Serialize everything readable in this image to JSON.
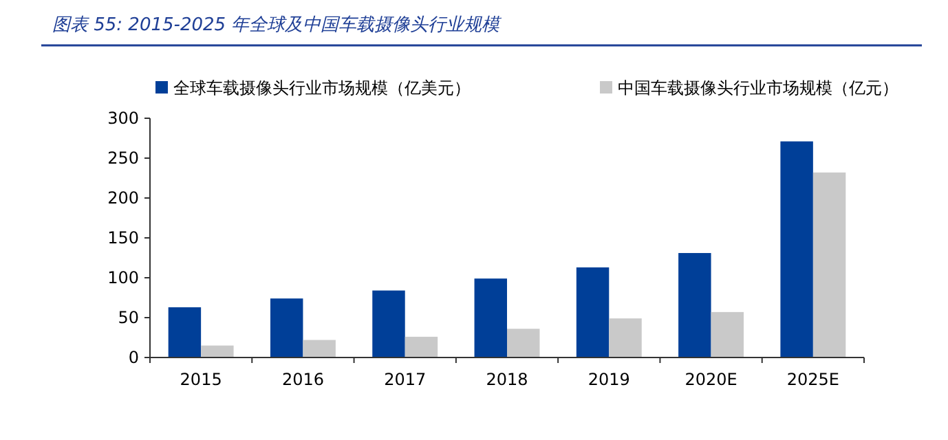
{
  "chart_data": {
    "type": "bar",
    "title": "图表 55:  2015-2025 年全球及中国车载摄像头行业规模",
    "categories": [
      "2015",
      "2016",
      "2017",
      "2018",
      "2019",
      "2020E",
      "2025E"
    ],
    "series": [
      {
        "name": "全球车载摄像头行业市场规模（亿美元）",
        "color": "#003f98",
        "values": [
          63,
          74,
          84,
          99,
          113,
          131,
          271
        ]
      },
      {
        "name": "中国车载摄像头行业市场规模（亿元）",
        "color": "#c9c9c9",
        "values": [
          15,
          22,
          26,
          36,
          49,
          57,
          232
        ]
      }
    ],
    "ylim": [
      0,
      300
    ],
    "yticks": [
      0,
      50,
      100,
      150,
      200,
      250,
      300
    ],
    "grid": false,
    "legend": "top"
  }
}
